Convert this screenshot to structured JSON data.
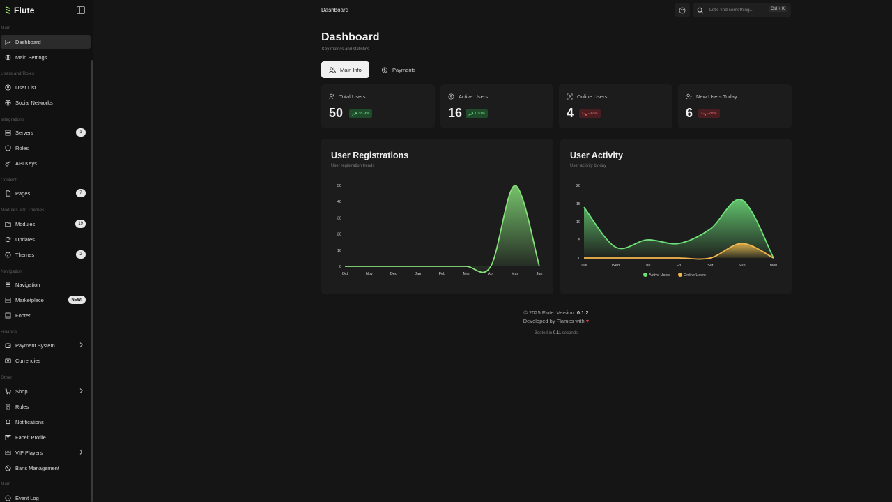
{
  "brand": {
    "name": "Flute"
  },
  "header": {
    "page": "Dashboard",
    "search_placeholder": "Let's find something...",
    "shortcut": "Ctrl + K"
  },
  "sidebar": {
    "sections": [
      {
        "label": "Main",
        "items": [
          {
            "label": "Dashboard",
            "icon": "chart-line-icon",
            "active": true
          },
          {
            "label": "Main Settings",
            "icon": "gear-icon"
          }
        ]
      },
      {
        "label": "Users and Roles",
        "items": [
          {
            "label": "User List",
            "icon": "user-icon"
          },
          {
            "label": "Social Networks",
            "icon": "globe-icon"
          }
        ]
      },
      {
        "label": "Integrations",
        "items": [
          {
            "label": "Servers",
            "icon": "server-icon",
            "badge": "1"
          },
          {
            "label": "Roles",
            "icon": "shield-icon"
          },
          {
            "label": "API Keys",
            "icon": "key-icon"
          }
        ]
      },
      {
        "label": "Content",
        "items": [
          {
            "label": "Pages",
            "icon": "file-icon",
            "badge": "7"
          }
        ]
      },
      {
        "label": "Modules and Themes",
        "items": [
          {
            "label": "Modules",
            "icon": "folder-icon",
            "badge": "19"
          },
          {
            "label": "Updates",
            "icon": "refresh-icon"
          },
          {
            "label": "Themes",
            "icon": "palette-icon",
            "badge": "2"
          }
        ]
      },
      {
        "label": "Navigation",
        "items": [
          {
            "label": "Navigation",
            "icon": "menu-icon"
          },
          {
            "label": "Marketplace",
            "icon": "store-icon",
            "badge": "NEW!"
          },
          {
            "label": "Footer",
            "icon": "footer-icon"
          }
        ]
      },
      {
        "label": "Finance",
        "items": [
          {
            "label": "Payment System",
            "icon": "wallet-icon",
            "chevron": true
          },
          {
            "label": "Currencies",
            "icon": "currency-icon"
          }
        ]
      },
      {
        "label": "Other",
        "items": [
          {
            "label": "Shop",
            "icon": "cart-icon",
            "chevron": true
          },
          {
            "label": "Rules",
            "icon": "rules-icon"
          },
          {
            "label": "Notifications",
            "icon": "bell-icon"
          },
          {
            "label": "Faceit Profile",
            "icon": "faceit-icon"
          },
          {
            "label": "VIP Players",
            "icon": "crown-icon",
            "chevron": true
          },
          {
            "label": "Bans Management",
            "icon": "ban-icon"
          }
        ]
      },
      {
        "label": "Main",
        "items": [
          {
            "label": "Event Log",
            "icon": "log-icon"
          }
        ]
      }
    ]
  },
  "main": {
    "title": "Dashboard",
    "subtitle": "Key metrics and statistics",
    "tabs": [
      {
        "label": "Main Info",
        "icon": "users-icon"
      },
      {
        "label": "Payments",
        "icon": "dollar-icon"
      }
    ],
    "stats": [
      {
        "label": "Total Users",
        "value": "50",
        "change": "38.9%",
        "trend": "up",
        "icon": "users-icon"
      },
      {
        "label": "Active Users",
        "value": "16",
        "change": "100%",
        "trend": "up",
        "icon": "activity-icon"
      },
      {
        "label": "Online Users",
        "value": "4",
        "change": "-92%",
        "trend": "down",
        "icon": "online-icon"
      },
      {
        "label": "New Users Today",
        "value": "6",
        "change": "-20%",
        "trend": "down",
        "icon": "user-plus-icon"
      }
    ]
  },
  "chart_data": [
    {
      "type": "area",
      "title": "User Registrations",
      "subtitle": "User registration trends",
      "x": [
        "Oct",
        "Nov",
        "Dec",
        "Jan",
        "Feb",
        "Mar",
        "Apr",
        "May",
        "Jun"
      ],
      "series": [
        {
          "name": "",
          "values": [
            0,
            0,
            0,
            0,
            0,
            0,
            0,
            50,
            0
          ],
          "color": "#86e07a"
        }
      ],
      "yticks": [
        0,
        10,
        20,
        30,
        40,
        50
      ],
      "ylim": [
        0,
        50
      ]
    },
    {
      "type": "area",
      "title": "User Activity",
      "subtitle": "User activity by day",
      "x": [
        "Tue",
        "Wed",
        "Thu",
        "Fri",
        "Sat",
        "Sun",
        "Mon"
      ],
      "series": [
        {
          "name": "Active Users",
          "values": [
            14,
            3,
            5,
            4,
            8,
            16,
            0
          ],
          "color": "#6ee07a"
        },
        {
          "name": "Online Users",
          "values": [
            0,
            0,
            0,
            0,
            0,
            4,
            0
          ],
          "color": "#f2b64c"
        }
      ],
      "yticks": [
        0,
        5,
        10,
        15,
        20
      ],
      "ylim": [
        0,
        20
      ],
      "legend": "bottom"
    }
  ],
  "footer": {
    "copyright": "© 2025 Flute. Version:",
    "version": "0.1.2",
    "developed": "Developed by Flames with",
    "booted_prefix": "Booted in",
    "booted_value": "0.11",
    "booted_suffix": "seconds"
  }
}
